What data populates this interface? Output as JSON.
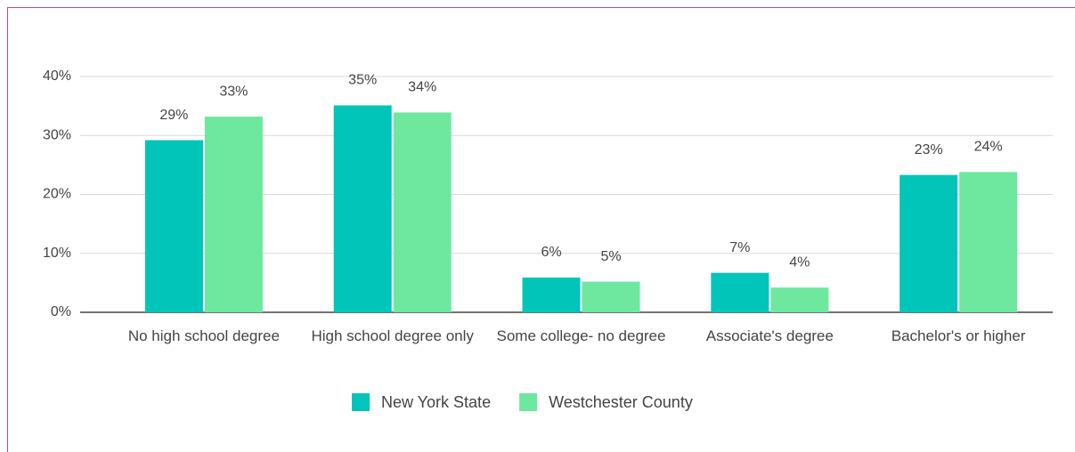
{
  "chart_data": {
    "type": "bar",
    "categories": [
      "No high school degree",
      "High school degree only",
      "Some college- no degree",
      "Associate's degree",
      "Bachelor's or higher"
    ],
    "series": [
      {
        "name": "New York State",
        "color": "#00c5b8",
        "values": [
          29.2,
          35.1,
          5.9,
          6.7,
          23.3
        ],
        "value_labels": [
          "29%",
          "35%",
          "6%",
          "7%",
          "23%"
        ]
      },
      {
        "name": "Westchester County",
        "color": "#6ee89f",
        "values": [
          33.2,
          33.9,
          5.2,
          4.2,
          23.8
        ],
        "value_labels": [
          "33%",
          "34%",
          "5%",
          "4%",
          "24%"
        ]
      }
    ],
    "ylim": [
      0,
      40
    ],
    "yticks": [
      {
        "value": 0,
        "label": "0%"
      },
      {
        "value": 10,
        "label": "10%"
      },
      {
        "value": 20,
        "label": "20%"
      },
      {
        "value": 30,
        "label": "30%"
      },
      {
        "value": 40,
        "label": "40%"
      }
    ],
    "grid": true,
    "legend": "bottom"
  }
}
